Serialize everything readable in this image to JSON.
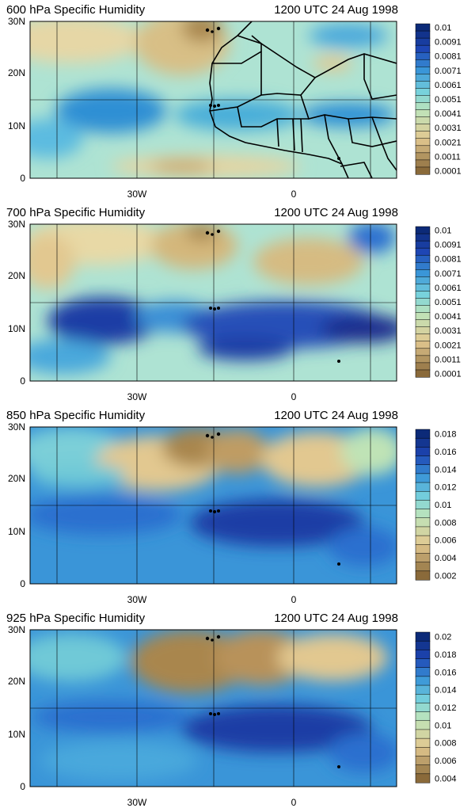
{
  "panels": [
    {
      "title_left": "600 hPa Specific Humidity",
      "title_right": "1200 UTC 24 Aug 1998",
      "y_ticks": [
        "30N",
        "20N",
        "10N",
        "0"
      ],
      "x_ticks": [
        "30W",
        "0"
      ],
      "colorbar_labels": [
        "0.01",
        "0.0091",
        "0.0081",
        "0.0071",
        "0.0061",
        "0.0051",
        "0.0041",
        "0.0031",
        "0.0021",
        "0.0011",
        "0.0001"
      ]
    },
    {
      "title_left": "700 hPa Specific Humidity",
      "title_right": "1200 UTC 24 Aug 1998",
      "y_ticks": [
        "30N",
        "20N",
        "10N",
        "0"
      ],
      "x_ticks": [
        "30W",
        "0"
      ],
      "colorbar_labels": [
        "0.01",
        "0.0091",
        "0.0081",
        "0.0071",
        "0.0061",
        "0.0051",
        "0.0041",
        "0.0031",
        "0.0021",
        "0.0011",
        "0.0001"
      ]
    },
    {
      "title_left": "850 hPa Specific Humidity",
      "title_right": "1200 UTC 24 Aug 1998",
      "y_ticks": [
        "30N",
        "20N",
        "10N",
        "0"
      ],
      "x_ticks": [
        "30W",
        "0"
      ],
      "colorbar_labels": [
        "0.018",
        "0.016",
        "0.014",
        "0.012",
        "0.01",
        "0.008",
        "0.006",
        "0.004",
        "0.002"
      ]
    },
    {
      "title_left": "925 hPa Specific Humidity",
      "title_right": "1200 UTC 24 Aug 1998",
      "y_ticks": [
        "30N",
        "20N",
        "10N",
        "0"
      ],
      "x_ticks": [
        "30W",
        "0"
      ],
      "colorbar_labels": [
        "0.02",
        "0.018",
        "0.016",
        "0.014",
        "0.012",
        "0.01",
        "0.008",
        "0.006",
        "0.004"
      ]
    }
  ],
  "palette": {
    "low": "#8a6a3a",
    "mid_low": "#e2c890",
    "mid": "#aee3d3",
    "mid_high": "#3aa0d8",
    "high": "#0c2a78"
  }
}
